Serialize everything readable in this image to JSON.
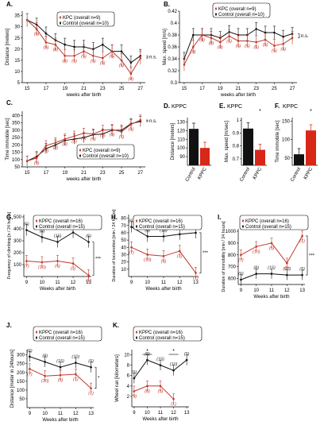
{
  "colors": {
    "kpc": "#c0392b",
    "ctl": "#111111",
    "bar_kpc": "#d62718",
    "bar_ctl": "#111111"
  },
  "chart_data": [
    {
      "panel": "A.",
      "type": "line",
      "x": [
        15,
        16,
        17,
        18,
        19,
        20,
        21,
        22,
        23,
        24,
        25,
        26,
        27
      ],
      "xticks": [
        15,
        17,
        19,
        21,
        23,
        25,
        27
      ],
      "xlabel": "weeks after birth",
      "ylabel": "Distance [meters]",
      "yticks": [
        5,
        10,
        15,
        20,
        25,
        30,
        35
      ],
      "ylim": [
        5,
        37
      ],
      "legend": [
        "KPC (overall n=9)",
        "Control (overall n=10)"
      ],
      "sig": "n.s.",
      "series": [
        {
          "name": "KPC (overall n=9)",
          "values": [
            33,
            29,
            23,
            22,
            17,
            17,
            19,
            17,
            16,
            19,
            15,
            9,
            16
          ],
          "labels": [
            "",
            "(9)",
            "(9)",
            "(8)",
            "(8)",
            "(5)",
            "(5)",
            "(5)",
            "(5)",
            "(5)",
            "(5)",
            "(4)",
            ""
          ]
        },
        {
          "name": "Control (overall n=10)",
          "values": [
            33,
            31,
            27,
            24,
            22,
            21,
            21,
            20,
            22,
            19,
            19,
            14,
            17
          ]
        }
      ]
    },
    {
      "panel": "B.",
      "type": "line",
      "x": [
        15,
        16,
        17,
        18,
        19,
        20,
        21,
        22,
        23,
        24,
        25,
        26,
        27
      ],
      "xticks": [
        15,
        17,
        19,
        21,
        23,
        25,
        27
      ],
      "xlabel": "weeks after birth",
      "ylabel": "Max. speed [m/s]",
      "yticks": [
        0.3,
        0.32,
        0.34,
        0.36,
        0.38,
        0.4,
        0.42
      ],
      "ylim": [
        0.3,
        0.42
      ],
      "legend": [
        "KPC (overall n=9)",
        "Control (overall n=10)"
      ],
      "sig": "n.s.",
      "series": [
        {
          "name": "KPC (overall n=9)",
          "values": [
            0.33,
            0.36,
            0.38,
            0.375,
            0.368,
            0.378,
            0.37,
            0.37,
            0.368,
            0.372,
            0.362,
            0.365,
            0.375
          ],
          "labels": [
            "",
            "(9)",
            "(9)",
            "(8)",
            "(8)",
            "(5)",
            "(5)",
            "(5)",
            "(5)",
            "(5)",
            "(5)",
            "(4)",
            ""
          ]
        },
        {
          "name": "Control (overall n=10)",
          "values": [
            0.34,
            0.38,
            0.38,
            0.38,
            0.375,
            0.385,
            0.38,
            0.38,
            0.39,
            0.384,
            0.384,
            0.377,
            0.382
          ]
        }
      ]
    },
    {
      "panel": "C.",
      "type": "line",
      "x": [
        15,
        16,
        17,
        18,
        19,
        20,
        21,
        22,
        23,
        24,
        25,
        26,
        27
      ],
      "xticks": [
        15,
        17,
        19,
        21,
        23,
        25,
        27
      ],
      "xlabel": "weeks after birth",
      "ylabel": "Time immobile [sec]",
      "yticks": [
        50,
        100,
        150,
        200,
        250,
        300,
        350,
        400
      ],
      "ylim": [
        50,
        430
      ],
      "legend": [
        "KPC (overall n=9)",
        "Control (overall n=10)"
      ],
      "sig": "n.s.",
      "series": [
        {
          "name": "KPC (overall n=9)",
          "values": [
            90,
            110,
            195,
            215,
            240,
            260,
            280,
            275,
            300,
            305,
            290,
            340,
            370
          ],
          "labels": [
            "",
            "(9)",
            "(9)",
            "(8)",
            "(8)",
            "(5)",
            "(5)",
            "(5)",
            "(5)",
            "(5)",
            "(5)",
            "(4)",
            ""
          ]
        },
        {
          "name": "Control (overall n=10)",
          "values": [
            90,
            120,
            175,
            200,
            230,
            240,
            250,
            270,
            275,
            300,
            300,
            345,
            360
          ]
        }
      ]
    },
    {
      "panel": "D.",
      "type": "bar",
      "title": "KPPC",
      "categories": [
        "Control",
        "KPPC"
      ],
      "values": [
        122,
        100
      ],
      "ylabel": "Distance [meters]",
      "yticks": [
        90,
        100,
        110,
        120,
        130
      ],
      "ylim": [
        80,
        135
      ],
      "sig": ""
    },
    {
      "panel": "E.",
      "type": "bar",
      "title": "KPPC",
      "categories": [
        "Control",
        "KPPC"
      ],
      "values": [
        0.935,
        0.77
      ],
      "ylabel": "Max. speed [m/sec]",
      "yticks": [
        0.7,
        0.8,
        0.9,
        1
      ],
      "ylim": [
        0.65,
        1.02
      ],
      "sig": "*"
    },
    {
      "panel": "F.",
      "type": "bar",
      "title": "KPPC",
      "categories": [
        "Control",
        "KPPC"
      ],
      "values": [
        60,
        125
      ],
      "ylabel": "Time immobile [sec]",
      "yticks": [
        50,
        100,
        150
      ],
      "ylim": [
        30,
        160
      ],
      "sig": "*"
    },
    {
      "panel": "G.",
      "type": "line",
      "x": [
        9,
        10,
        11,
        12,
        13
      ],
      "xticks": [
        9,
        10,
        11,
        12,
        13
      ],
      "xlabel": "Weeks after birth",
      "ylabel": "Frequency of climbing [n / 24 hours]",
      "yticks": [
        100,
        200,
        300,
        400,
        500
      ],
      "ylim": [
        0,
        520
      ],
      "legend": [
        "KPPC (overall n=16)",
        "Control (overall n=15)"
      ],
      "sig": "***",
      "series": [
        {
          "name": "KPPC (overall n=16)",
          "values": [
            130,
            120,
            130,
            110,
            10
          ],
          "labels": [
            "(7)",
            "(10)",
            "(5)",
            "(1)",
            "(1)"
          ]
        },
        {
          "name": "Control (overall n=15)",
          "values": [
            390,
            330,
            290,
            370,
            290
          ],
          "labels": [
            "(6)",
            "(8)",
            "(15)",
            "(10)",
            "(5)"
          ]
        }
      ]
    },
    {
      "panel": "H.",
      "type": "line",
      "x": [
        9,
        10,
        11,
        12,
        13
      ],
      "xticks": [
        9,
        10,
        11,
        12,
        13
      ],
      "xlabel": "Weeks after birth",
      "ylabel": "Duration of locomotion [min / 24 hours]",
      "yticks": [
        10,
        20,
        30,
        40,
        50,
        60,
        70,
        80
      ],
      "ylim": [
        0,
        85
      ],
      "legend": [
        "KPPC (overall n=16)",
        "Control (overall n=15)"
      ],
      "sig": "***",
      "series": [
        {
          "name": "KPPC (overall n=16)",
          "values": [
            40,
            30,
            28,
            35,
            5
          ],
          "labels": [
            "(7)",
            "(10)",
            "(5)",
            "(1)",
            "(1)"
          ]
        },
        {
          "name": "Control (overall n=15)",
          "values": [
            68,
            55,
            55,
            58,
            60
          ],
          "labels": [
            "(6)",
            "(8)",
            "(15)",
            "(10)",
            "(5)"
          ]
        }
      ]
    },
    {
      "panel": "I.",
      "type": "line",
      "x": [
        9,
        10,
        11,
        12,
        13
      ],
      "xticks": [
        9,
        10,
        11,
        12,
        13
      ],
      "xlabel": "Weeks after birth",
      "ylabel": "Duration of immobility [min / 24 hours]",
      "yticks": [
        600,
        700,
        800,
        900,
        1000
      ],
      "ylim": [
        550,
        1020
      ],
      "legend": [
        "KPPC (overall n=16)",
        "Control (overall n=15)"
      ],
      "sig": "***",
      "series": [
        {
          "name": "KPPC (overall n=16)",
          "values": [
            800,
            870,
            900,
            730,
            960
          ],
          "labels": [
            "(7)",
            "(10)",
            "(5)",
            "(1)",
            "(1)"
          ]
        },
        {
          "name": "Control (overall n=15)",
          "values": [
            590,
            640,
            640,
            630,
            630
          ],
          "labels": [
            "(6)",
            "(8)",
            "(15)",
            "(10)",
            "(5)"
          ]
        }
      ]
    },
    {
      "panel": "J.",
      "type": "line",
      "x": [
        9,
        10,
        11,
        12,
        13
      ],
      "xticks": [
        9,
        10,
        11,
        12,
        13
      ],
      "xlabel": "Weeks after birth",
      "ylabel": "Distance [meter in 24hours]",
      "yticks": [
        50,
        100,
        150,
        200,
        250,
        300
      ],
      "ylim": [
        0,
        330
      ],
      "legend": [
        "KPPC (overall n=16)",
        "Control (overall n=15)"
      ],
      "sig": "*",
      "series": [
        {
          "name": "KPPC (overall n=16)",
          "values": [
            220,
            180,
            185,
            190,
            110
          ],
          "labels": [
            "(7)",
            "(10)",
            "(5)",
            "(1)",
            "(1)"
          ]
        },
        {
          "name": "Control (overall n=15)",
          "values": [
            290,
            260,
            230,
            255,
            230
          ],
          "labels": [
            "(6)",
            "(8)",
            "(15)",
            "(10)",
            "(5)"
          ]
        }
      ]
    },
    {
      "panel": "K.",
      "type": "line",
      "x": [
        9,
        10,
        11,
        12,
        13
      ],
      "xticks": [
        9,
        10,
        11,
        12,
        13
      ],
      "xlabel": "Weeks after birth",
      "ylabel": "Wheel run [kilometers]",
      "yticks": [
        2,
        4,
        6,
        8,
        10
      ],
      "ylim": [
        0,
        11
      ],
      "legend": [
        "KPPC (overall n=16)",
        "Control (overall n=15)"
      ],
      "sig": "",
      "stars": [
        {
          "x": 10,
          "text": "*"
        },
        {
          "x": 12,
          "text": "*"
        }
      ],
      "series": [
        {
          "name": "KPPC (overall n=16)",
          "values": [
            3,
            4,
            4,
            1.5,
            null
          ],
          "labels": [
            "(9)",
            "(8)",
            "(5)",
            "(1)",
            ""
          ]
        },
        {
          "name": "Control (overall n=15)",
          "values": [
            5.5,
            9,
            8,
            7,
            9
          ],
          "labels": [
            "(6)",
            "(8)",
            "(15)",
            "(10)",
            "(5)"
          ]
        }
      ]
    }
  ]
}
